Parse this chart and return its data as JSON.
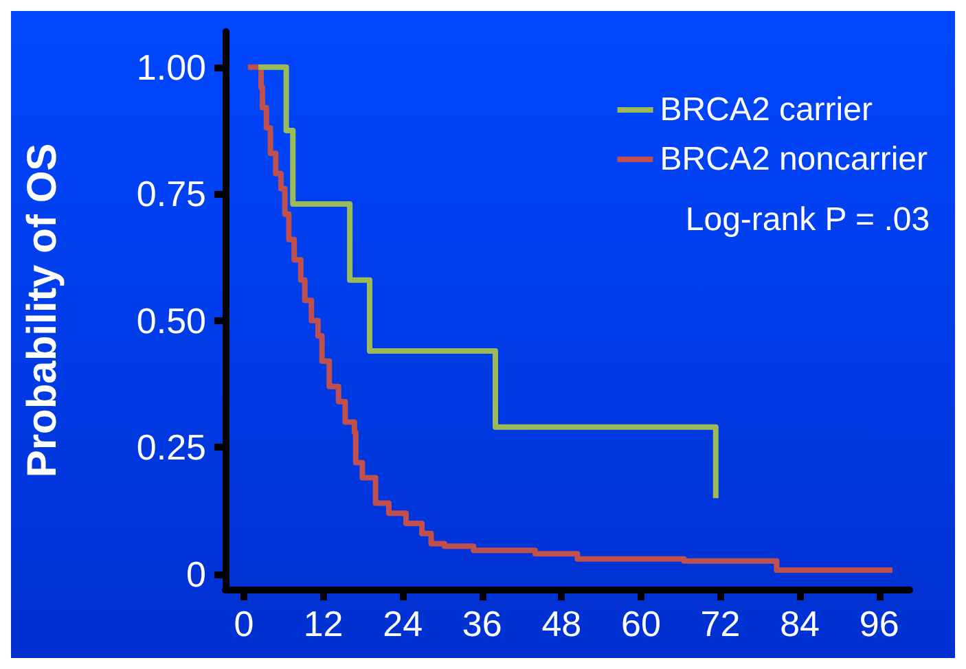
{
  "chart_data": {
    "type": "step",
    "ylabel": "Probability of OS",
    "series": [
      {
        "name": "BRCA2 carrier",
        "color": "#9bbb59",
        "x": [
          2.2,
          6.4,
          7.4,
          16,
          19,
          38,
          71.3
        ],
        "values": [
          1.0,
          0.875,
          0.73,
          0.58,
          0.44,
          0.29,
          0.15
        ]
      },
      {
        "name": "BRCA2 noncarrier",
        "color": "#c0504d",
        "x": [
          0.6,
          2.6,
          2.8,
          3.4,
          4.0,
          4.8,
          5.6,
          6.2,
          6.8,
          7.6,
          8.6,
          9.2,
          10.2,
          11.2,
          11.8,
          12.9,
          14.3,
          15.3,
          16.7,
          16.9,
          17.9,
          19.9,
          21.9,
          24.5,
          26.9,
          28.3,
          30.3,
          34.7,
          44,
          50.4,
          66.5,
          80.5,
          98
        ],
        "values": [
          1.0,
          0.96,
          0.92,
          0.88,
          0.83,
          0.79,
          0.76,
          0.71,
          0.66,
          0.62,
          0.58,
          0.54,
          0.5,
          0.47,
          0.42,
          0.37,
          0.34,
          0.3,
          0.28,
          0.22,
          0.19,
          0.14,
          0.12,
          0.1,
          0.08,
          0.06,
          0.055,
          0.047,
          0.04,
          0.03,
          0.026,
          0.008,
          0.008
        ]
      }
    ],
    "annotations": [
      "Log-rank P = .03"
    ],
    "xlim": [
      -2.8,
      100.6
    ],
    "xticks": [
      0,
      12,
      24,
      36,
      48,
      60,
      72,
      84,
      96
    ],
    "ylim": [
      -0.03,
      1.07
    ],
    "yticks": [
      {
        "value": 0,
        "label": "0"
      },
      {
        "value": 0.25,
        "label": "0.25"
      },
      {
        "value": 0.5,
        "label": "0.50"
      },
      {
        "value": 0.75,
        "label": "0.75"
      },
      {
        "value": 1,
        "label": "1.00"
      }
    ],
    "grid": false,
    "legend": "top right",
    "line_style": "solid",
    "marker": "none"
  }
}
